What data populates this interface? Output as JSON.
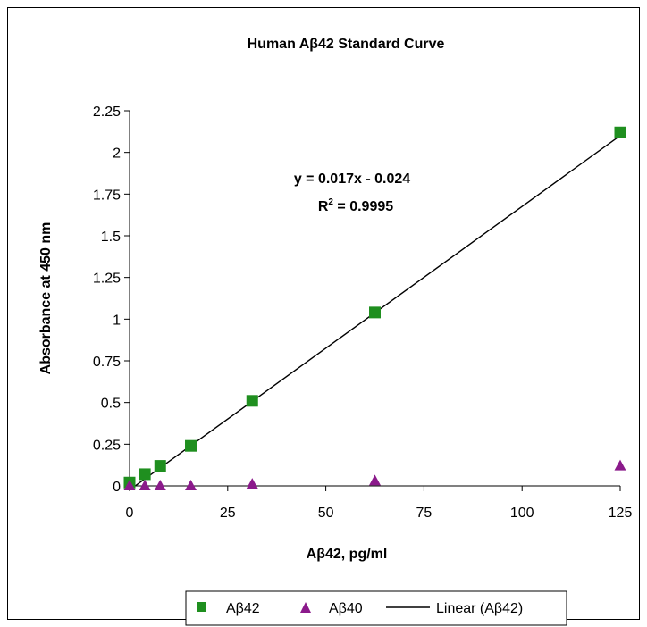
{
  "chart_data": {
    "type": "scatter",
    "title": "Human Aβ42 Standard Curve",
    "xlabel": "Aβ42, pg/ml",
    "ylabel": "Absorbance at 450 nm",
    "xlim": [
      0,
      125
    ],
    "ylim": [
      0,
      2.25
    ],
    "x_ticks": [
      "0",
      "25",
      "50",
      "75",
      "100",
      "125"
    ],
    "y_ticks": [
      "0",
      "0.25",
      "0.5",
      "0.75",
      "1",
      "1.25",
      "1.5",
      "1.75",
      "2",
      "2.25"
    ],
    "grid": false,
    "series": [
      {
        "name": "Aβ42",
        "marker": "square",
        "color": "#1f8f1f",
        "x": [
          0,
          3.9,
          7.8,
          15.6,
          31.25,
          62.5,
          125
        ],
        "y": [
          0.02,
          0.07,
          0.12,
          0.24,
          0.51,
          1.04,
          2.12
        ]
      },
      {
        "name": "Aβ40",
        "marker": "triangle",
        "color": "#8b1a8b",
        "x": [
          0,
          3.9,
          7.8,
          15.6,
          31.25,
          62.5,
          125
        ],
        "y": [
          0.0,
          0.0,
          0.0,
          0.0,
          0.01,
          0.03,
          0.12
        ]
      }
    ],
    "trendline": {
      "name": "Linear (Aβ42)",
      "slope": 0.017,
      "intercept": -0.024,
      "x_range": [
        1.41,
        125
      ],
      "color": "#000000"
    },
    "annotation": {
      "equation": "y = 0.017x - 0.024",
      "r2_prefix": "R",
      "r2_sup": "2",
      "r2_value": " = 0.9995"
    },
    "legend_position": "bottom"
  }
}
